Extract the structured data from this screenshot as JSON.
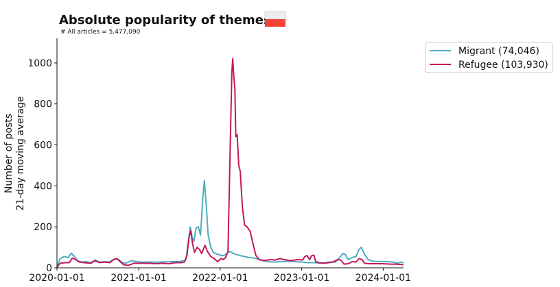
{
  "title": "Absolute popularity of themes",
  "subtitle": "# All articles = 5,477,090",
  "flag": {
    "top_color": "#eeeeef",
    "bottom_color": "#f44336"
  },
  "chart_data": {
    "type": "line",
    "xlabel": "",
    "ylabel_line1": "Number of posts",
    "ylabel_line2": "21-day moving average",
    "xlim": [
      "2020-01-01",
      "2024-04-01"
    ],
    "ylim": [
      0,
      1120
    ],
    "yticks": [
      0,
      200,
      400,
      600,
      800,
      1000
    ],
    "xticks": [
      "2020-01-01",
      "2021-01-01",
      "2022-01-01",
      "2023-01-01",
      "2024-01-01"
    ],
    "grid": false,
    "legend_position": "top-right, outside plot",
    "series": [
      {
        "name": "Migrant (74,046)",
        "color": "#4bacbd",
        "points": [
          [
            "2020-01-01",
            5
          ],
          [
            "2020-01-15",
            45
          ],
          [
            "2020-02-01",
            55
          ],
          [
            "2020-02-20",
            50
          ],
          [
            "2020-03-05",
            72
          ],
          [
            "2020-03-20",
            55
          ],
          [
            "2020-04-01",
            35
          ],
          [
            "2020-04-20",
            28
          ],
          [
            "2020-05-10",
            30
          ],
          [
            "2020-06-01",
            25
          ],
          [
            "2020-06-20",
            38
          ],
          [
            "2020-07-10",
            28
          ],
          [
            "2020-08-01",
            30
          ],
          [
            "2020-08-20",
            28
          ],
          [
            "2020-09-10",
            40
          ],
          [
            "2020-09-25",
            45
          ],
          [
            "2020-10-10",
            35
          ],
          [
            "2020-10-25",
            22
          ],
          [
            "2020-11-10",
            25
          ],
          [
            "2020-12-01",
            35
          ],
          [
            "2020-12-20",
            30
          ],
          [
            "2021-01-15",
            28
          ],
          [
            "2021-02-15",
            28
          ],
          [
            "2021-03-15",
            28
          ],
          [
            "2021-04-15",
            28
          ],
          [
            "2021-05-15",
            30
          ],
          [
            "2021-06-15",
            30
          ],
          [
            "2021-07-01",
            30
          ],
          [
            "2021-07-20",
            35
          ],
          [
            "2021-08-01",
            40
          ],
          [
            "2021-08-10",
            120
          ],
          [
            "2021-08-20",
            200
          ],
          [
            "2021-08-28",
            150
          ],
          [
            "2021-09-05",
            130
          ],
          [
            "2021-09-15",
            195
          ],
          [
            "2021-09-25",
            200
          ],
          [
            "2021-10-05",
            160
          ],
          [
            "2021-10-15",
            340
          ],
          [
            "2021-10-22",
            425
          ],
          [
            "2021-10-30",
            310
          ],
          [
            "2021-11-08",
            160
          ],
          [
            "2021-11-20",
            100
          ],
          [
            "2021-12-01",
            75
          ],
          [
            "2021-12-15",
            68
          ],
          [
            "2022-01-01",
            62
          ],
          [
            "2022-01-15",
            60
          ],
          [
            "2022-01-25",
            65
          ],
          [
            "2022-02-05",
            75
          ],
          [
            "2022-02-15",
            80
          ],
          [
            "2022-02-28",
            70
          ],
          [
            "2022-03-15",
            65
          ],
          [
            "2022-04-01",
            60
          ],
          [
            "2022-04-20",
            55
          ],
          [
            "2022-05-10",
            50
          ],
          [
            "2022-06-01",
            48
          ],
          [
            "2022-06-20",
            42
          ],
          [
            "2022-07-10",
            35
          ],
          [
            "2022-08-01",
            30
          ],
          [
            "2022-09-01",
            28
          ],
          [
            "2022-10-01",
            30
          ],
          [
            "2022-11-01",
            32
          ],
          [
            "2022-12-01",
            30
          ],
          [
            "2023-01-01",
            28
          ],
          [
            "2023-02-01",
            25
          ],
          [
            "2023-03-01",
            25
          ],
          [
            "2023-04-01",
            22
          ],
          [
            "2023-05-01",
            28
          ],
          [
            "2023-06-01",
            28
          ],
          [
            "2023-06-20",
            50
          ],
          [
            "2023-07-05",
            70
          ],
          [
            "2023-07-15",
            65
          ],
          [
            "2023-07-28",
            40
          ],
          [
            "2023-08-15",
            50
          ],
          [
            "2023-09-01",
            55
          ],
          [
            "2023-09-15",
            90
          ],
          [
            "2023-09-25",
            100
          ],
          [
            "2023-10-10",
            65
          ],
          [
            "2023-10-25",
            40
          ],
          [
            "2023-11-15",
            32
          ],
          [
            "2023-12-15",
            30
          ],
          [
            "2024-01-15",
            30
          ],
          [
            "2024-02-15",
            28
          ],
          [
            "2024-03-05",
            22
          ],
          [
            "2024-03-20",
            28
          ],
          [
            "2024-04-01",
            25
          ]
        ]
      },
      {
        "name": "Refugee (103,930)",
        "color": "#c2185b",
        "points": [
          [
            "2020-01-01",
            3
          ],
          [
            "2020-01-15",
            22
          ],
          [
            "2020-02-05",
            25
          ],
          [
            "2020-02-25",
            25
          ],
          [
            "2020-03-10",
            48
          ],
          [
            "2020-03-25",
            40
          ],
          [
            "2020-04-10",
            28
          ],
          [
            "2020-05-01",
            25
          ],
          [
            "2020-06-01",
            22
          ],
          [
            "2020-06-20",
            35
          ],
          [
            "2020-07-10",
            25
          ],
          [
            "2020-08-01",
            28
          ],
          [
            "2020-08-25",
            25
          ],
          [
            "2020-09-10",
            40
          ],
          [
            "2020-09-25",
            45
          ],
          [
            "2020-10-10",
            30
          ],
          [
            "2020-10-25",
            15
          ],
          [
            "2020-11-15",
            12
          ],
          [
            "2020-12-10",
            22
          ],
          [
            "2021-01-15",
            22
          ],
          [
            "2021-02-15",
            22
          ],
          [
            "2021-03-15",
            20
          ],
          [
            "2021-04-15",
            22
          ],
          [
            "2021-05-15",
            20
          ],
          [
            "2021-06-15",
            25
          ],
          [
            "2021-07-10",
            25
          ],
          [
            "2021-07-25",
            28
          ],
          [
            "2021-08-05",
            60
          ],
          [
            "2021-08-15",
            150
          ],
          [
            "2021-08-22",
            180
          ],
          [
            "2021-08-30",
            120
          ],
          [
            "2021-09-08",
            75
          ],
          [
            "2021-09-20",
            100
          ],
          [
            "2021-09-30",
            90
          ],
          [
            "2021-10-10",
            70
          ],
          [
            "2021-10-25",
            110
          ],
          [
            "2021-11-05",
            80
          ],
          [
            "2021-11-20",
            55
          ],
          [
            "2021-12-05",
            45
          ],
          [
            "2021-12-20",
            30
          ],
          [
            "2022-01-05",
            45
          ],
          [
            "2022-01-15",
            40
          ],
          [
            "2022-01-25",
            50
          ],
          [
            "2022-02-05",
            80
          ],
          [
            "2022-02-15",
            600
          ],
          [
            "2022-02-22",
            950
          ],
          [
            "2022-02-26",
            1020
          ],
          [
            "2022-03-02",
            950
          ],
          [
            "2022-03-08",
            870
          ],
          [
            "2022-03-12",
            640
          ],
          [
            "2022-03-18",
            650
          ],
          [
            "2022-03-25",
            500
          ],
          [
            "2022-04-01",
            470
          ],
          [
            "2022-04-10",
            300
          ],
          [
            "2022-04-20",
            210
          ],
          [
            "2022-05-01",
            200
          ],
          [
            "2022-05-15",
            180
          ],
          [
            "2022-05-25",
            130
          ],
          [
            "2022-06-10",
            60
          ],
          [
            "2022-06-25",
            40
          ],
          [
            "2022-07-15",
            35
          ],
          [
            "2022-08-10",
            40
          ],
          [
            "2022-09-05",
            38
          ],
          [
            "2022-09-25",
            45
          ],
          [
            "2022-10-15",
            40
          ],
          [
            "2022-11-10",
            35
          ],
          [
            "2022-12-01",
            38
          ],
          [
            "2022-12-20",
            40
          ],
          [
            "2023-01-05",
            38
          ],
          [
            "2023-01-15",
            55
          ],
          [
            "2023-01-25",
            60
          ],
          [
            "2023-02-05",
            40
          ],
          [
            "2023-02-15",
            60
          ],
          [
            "2023-02-25",
            62
          ],
          [
            "2023-03-05",
            30
          ],
          [
            "2023-03-20",
            25
          ],
          [
            "2023-04-10",
            22
          ],
          [
            "2023-05-01",
            25
          ],
          [
            "2023-05-20",
            28
          ],
          [
            "2023-06-10",
            40
          ],
          [
            "2023-06-25",
            38
          ],
          [
            "2023-07-10",
            18
          ],
          [
            "2023-07-28",
            20
          ],
          [
            "2023-08-15",
            30
          ],
          [
            "2023-09-01",
            28
          ],
          [
            "2023-09-15",
            45
          ],
          [
            "2023-09-28",
            40
          ],
          [
            "2023-10-10",
            22
          ],
          [
            "2023-11-01",
            20
          ],
          [
            "2023-12-01",
            20
          ],
          [
            "2024-01-01",
            20
          ],
          [
            "2024-02-01",
            18
          ],
          [
            "2024-03-01",
            18
          ],
          [
            "2024-04-01",
            15
          ]
        ]
      }
    ]
  }
}
